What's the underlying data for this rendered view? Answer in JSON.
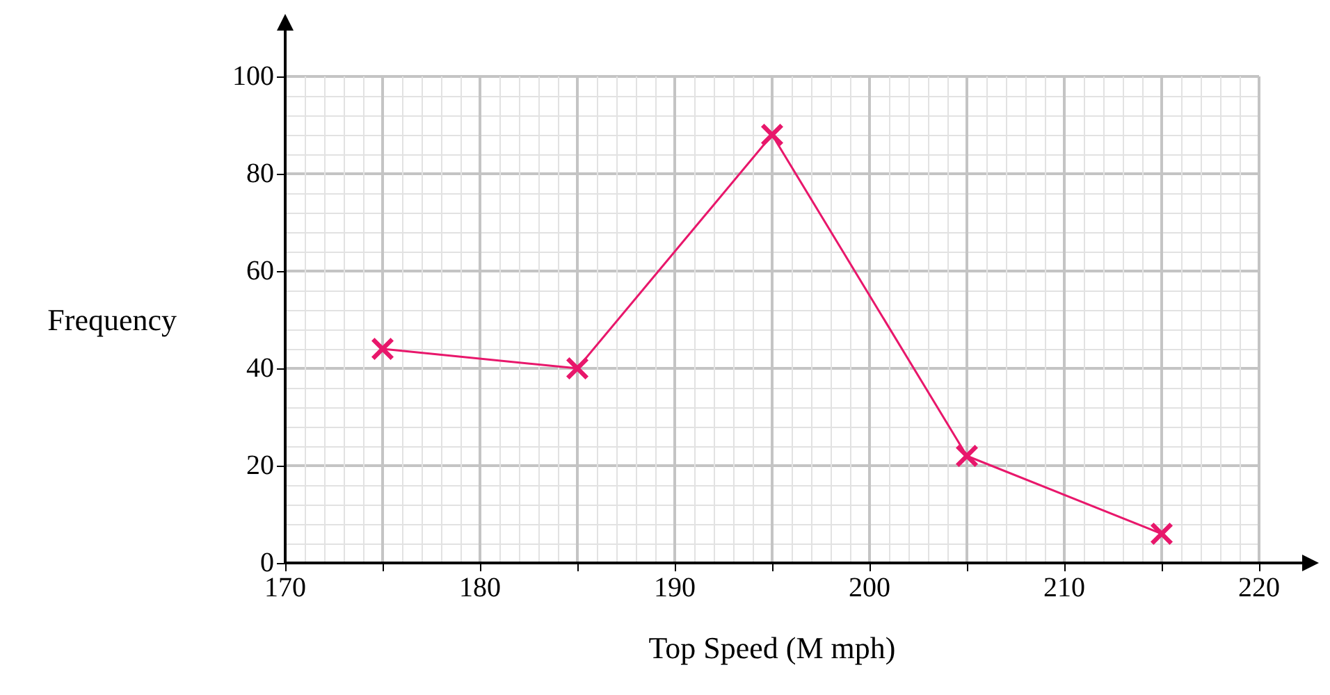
{
  "chart_data": {
    "type": "line",
    "xlabel": "Top Speed (M mph)",
    "ylabel": "Frequency",
    "x": [
      175,
      185,
      195,
      205,
      215
    ],
    "series": [
      {
        "color": "#e8176b",
        "values": [
          44,
          40,
          88,
          22,
          6
        ]
      }
    ],
    "xlim": [
      170,
      220
    ],
    "xticks": [
      170,
      {
        "value": 175,
        "label": null
      },
      180,
      {
        "value": 185,
        "label": null
      },
      190,
      {
        "value": 195,
        "label": null
      },
      200,
      {
        "value": 205,
        "label": null
      },
      210,
      {
        "value": 215,
        "label": null
      },
      220
    ],
    "ylim": [
      0,
      100
    ],
    "yticks": [
      0,
      20,
      40,
      60,
      80,
      100
    ],
    "grid": true,
    "marker": "cross",
    "line_style": "solid"
  }
}
